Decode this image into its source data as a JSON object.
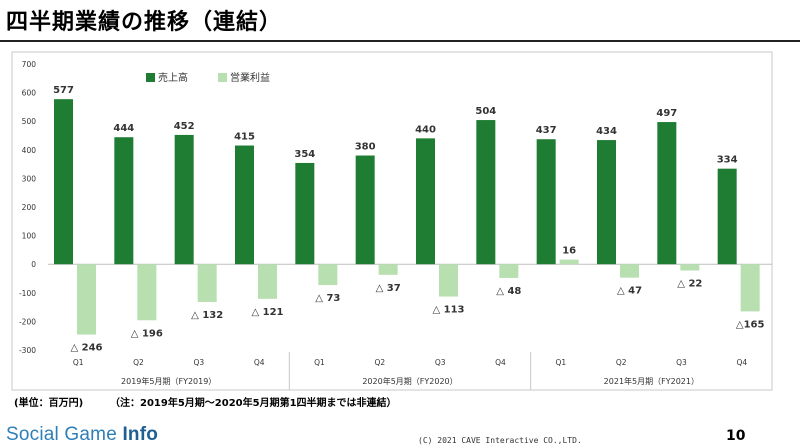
{
  "slide": {
    "title": "四半期業績の推移（連結）",
    "unit_note": "(単位：百万円)",
    "footnote": "（注：2019年5月期～2020年5月期第1四半期までは非連結）",
    "page_number": "10",
    "copyright": "(C) 2021 CAVE Interactive CO.,LTD.",
    "logo_light": "Social Game ",
    "logo_bold": "Info"
  },
  "colors": {
    "sales": "#1e7d32",
    "operating_profit": "#b7dfb0"
  },
  "chart_data": {
    "type": "bar",
    "ylim": [
      -300,
      700
    ],
    "yticks": [
      -300,
      -200,
      -100,
      0,
      100,
      200,
      300,
      400,
      500,
      600,
      700
    ],
    "categories": [
      "Q1",
      "Q2",
      "Q3",
      "Q4",
      "Q1",
      "Q2",
      "Q3",
      "Q4",
      "Q1",
      "Q2",
      "Q3",
      "Q4"
    ],
    "groups": [
      {
        "label": "2019年5月期（FY2019）",
        "count": 4
      },
      {
        "label": "2020年5月期（FY2020）",
        "count": 4
      },
      {
        "label": "2021年5月期（FY2021）",
        "count": 4
      }
    ],
    "legend": {
      "placement": "top-left"
    },
    "series": [
      {
        "name": "売上高",
        "values": [
          577,
          444,
          452,
          415,
          354,
          380,
          440,
          504,
          437,
          434,
          497,
          334
        ],
        "labels": [
          "577",
          "444",
          "452",
          "415",
          "354",
          "380",
          "440",
          "504",
          "437",
          "434",
          "497",
          "334"
        ]
      },
      {
        "name": "営業利益",
        "values": [
          -246,
          -196,
          -132,
          -121,
          -73,
          -37,
          -113,
          -48,
          16,
          -47,
          -22,
          -165
        ],
        "labels": [
          "△ 246",
          "△ 196",
          "△ 132",
          "△ 121",
          "△ 73",
          "△ 37",
          "△ 113",
          "△ 48",
          "16",
          "△ 47",
          "△ 22",
          "△165"
        ]
      }
    ]
  }
}
